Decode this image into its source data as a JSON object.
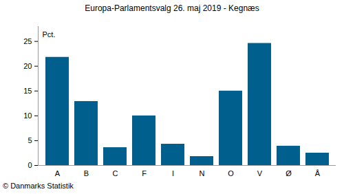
{
  "chart_data": {
    "type": "bar",
    "title": "Europa-Parlamentsvalg 26. maj 2019 - Kegnæs",
    "y_label": "Pct.",
    "caption": "© Danmarks Statistik",
    "categories": [
      "A",
      "B",
      "C",
      "F",
      "I",
      "N",
      "O",
      "V",
      "Ø",
      "Å"
    ],
    "values": [
      21.8,
      12.9,
      3.6,
      10.0,
      4.3,
      1.8,
      15.0,
      24.6,
      3.9,
      2.5
    ],
    "color": "#005f8c",
    "ylim": [
      0,
      28
    ],
    "yticks": [
      0,
      5,
      10,
      15,
      20,
      25
    ],
    "grid": false
  }
}
